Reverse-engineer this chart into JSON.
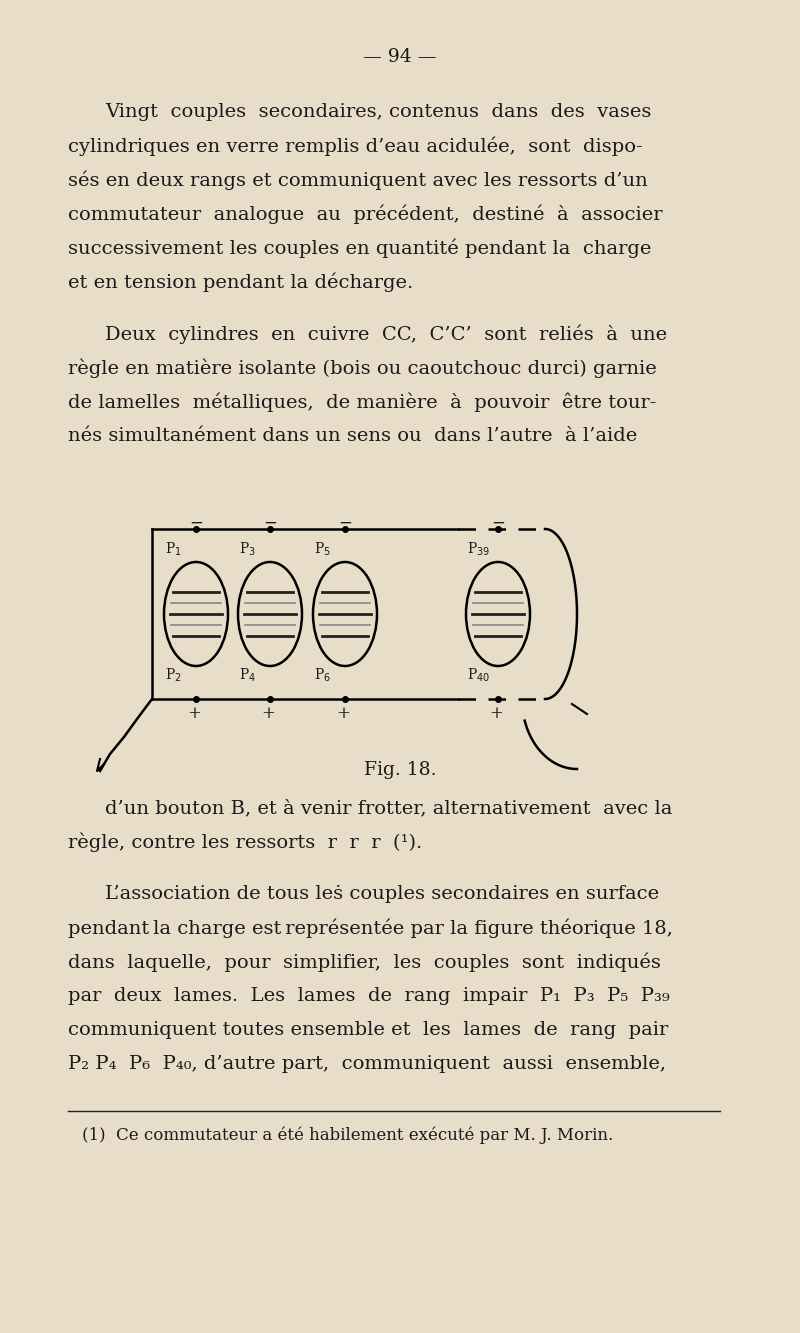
{
  "bg_color": "#e8ddc8",
  "text_color": "#1a1a1a",
  "page_number": "— 94 —",
  "fig_caption": "Fig. 18.",
  "footnote": "(1)  Ce commutateur a été habilement exécuté par M. J. Morin.",
  "p1_lines": [
    "Vingt  couples  secondaires, contenus  dans  des  vases",
    "cylindriques en verre remplis d’eau acidulée,  sont  dispo-",
    "sés en deux rangs et communiquent avec les ressorts d’un",
    "commutateur  analogue  au  précédent,  destiné  à  associer",
    "successivement les couples en quantité pendant la  charge",
    "et en tension pendant la décharge."
  ],
  "p2_lines": [
    "Deux  cylindres  en  cuivre  CC,  C’C’  sont  reliés  à  une",
    "règle en matière isolante (bois ou caoutchouc durci) garnie",
    "de lamelles  métalliques,  de manière  à  pouvoir  être tour-",
    "nés simultanément dans un sens ou  dans l’autre  à l’aide"
  ],
  "p3_lines": [
    "d’un bouton B, et à venir frotter, alternativement  avec la",
    "règle, contre les ressorts  r  r  r  (¹)."
  ],
  "p4_lines": [
    "L’association de tous leṡ couples secondaires en surface",
    "pendant la charge est représentée par la figure théorique 18,",
    "dans  laquelle,  pour  simplifier,  les  couples  sont  indiqués",
    "par  deux  lames.  Les  lames  de  rang  impair  P₁  P₃  P₅  P₃₉",
    "communiquent toutes ensemble et  les  lames  de  rang  pair",
    "P₂ P₄  P₆  P₄₀, d’autre part,  communiquent  aussi  ensemble,"
  ]
}
